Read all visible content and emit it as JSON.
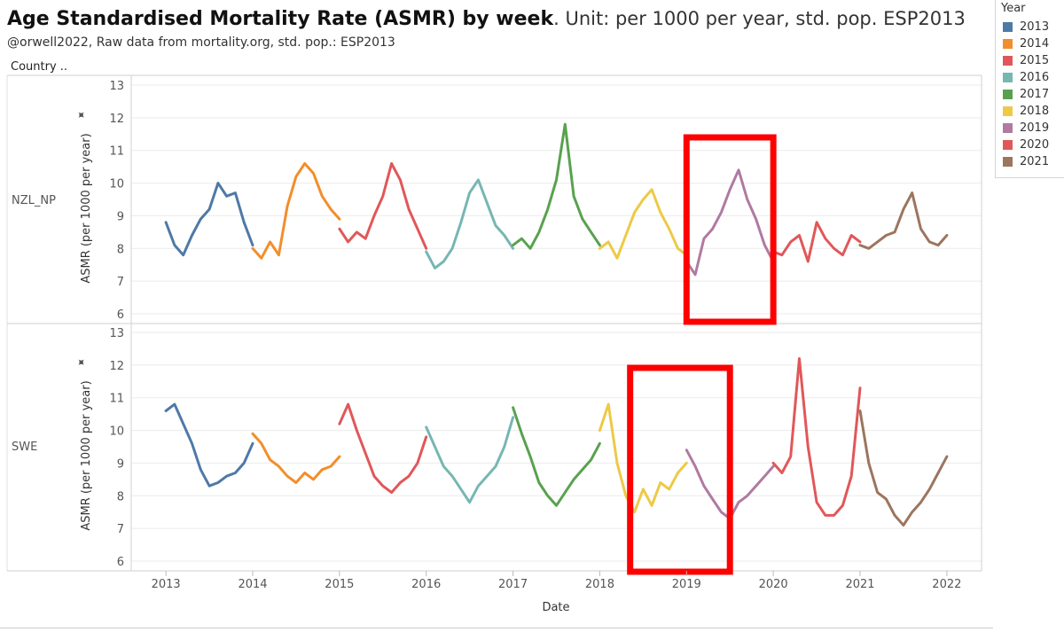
{
  "header": {
    "title_bold": "Age Standardised Mortality Rate (ASMR) by week",
    "title_rest": ". Unit: per 1000 per year, std. pop. ESP2013",
    "subtitle": "@orwell2022,  Raw data from mortality.org, std. pop.: ESP2013",
    "row_header": "Country .."
  },
  "legend": {
    "title": "Year",
    "items": [
      {
        "label": "2013",
        "color": "#4e79a7"
      },
      {
        "label": "2014",
        "color": "#f28e2b"
      },
      {
        "label": "2015",
        "color": "#e15759"
      },
      {
        "label": "2016",
        "color": "#76b7b2"
      },
      {
        "label": "2017",
        "color": "#59a14f"
      },
      {
        "label": "2018",
        "color": "#edc948"
      },
      {
        "label": "2019",
        "color": "#b07aa1"
      },
      {
        "label": "2020",
        "color": "#e15759"
      },
      {
        "label": "2021",
        "color": "#9c755f"
      }
    ]
  },
  "chart_data": {
    "type": "line",
    "title": "Age Standardised Mortality Rate (ASMR) by week",
    "xlabel": "Date",
    "ylabel": "ASMR (per 1000 per year)",
    "ylim": [
      6,
      13
    ],
    "yticks": [
      6,
      7,
      8,
      9,
      10,
      11,
      12,
      13
    ],
    "xlim": [
      2012.6,
      2022.4
    ],
    "xticks": [
      "2013",
      "2014",
      "2015",
      "2016",
      "2017",
      "2018",
      "2019",
      "2020",
      "2021",
      "2022"
    ],
    "highlight_color": "#ff0000",
    "panels": [
      {
        "country": "NZL_NP",
        "highlight": {
          "x_start": 2019.0,
          "x_end": 2020.0
        },
        "series": [
          {
            "name": "2013",
            "x": [
              2013.0,
              2013.1,
              2013.2,
              2013.3,
              2013.4,
              2013.5,
              2013.6,
              2013.7,
              2013.8,
              2013.9,
              2014.0
            ],
            "y": [
              8.8,
              8.1,
              7.8,
              8.4,
              8.9,
              9.2,
              10.0,
              9.6,
              9.7,
              8.8,
              8.1
            ]
          },
          {
            "name": "2014",
            "x": [
              2014.0,
              2014.1,
              2014.2,
              2014.3,
              2014.4,
              2014.5,
              2014.6,
              2014.7,
              2014.8,
              2014.9,
              2015.0
            ],
            "y": [
              8.0,
              7.7,
              8.2,
              7.8,
              9.3,
              10.2,
              10.6,
              10.3,
              9.6,
              9.2,
              8.9
            ]
          },
          {
            "name": "2015",
            "x": [
              2015.0,
              2015.1,
              2015.2,
              2015.3,
              2015.4,
              2015.5,
              2015.6,
              2015.7,
              2015.8,
              2015.9,
              2016.0
            ],
            "y": [
              8.6,
              8.2,
              8.5,
              8.3,
              9.0,
              9.6,
              10.6,
              10.1,
              9.2,
              8.6,
              8.0
            ]
          },
          {
            "name": "2016",
            "x": [
              2016.0,
              2016.1,
              2016.2,
              2016.3,
              2016.4,
              2016.5,
              2016.6,
              2016.7,
              2016.8,
              2016.9,
              2017.0
            ],
            "y": [
              7.9,
              7.4,
              7.6,
              8.0,
              8.8,
              9.7,
              10.1,
              9.4,
              8.7,
              8.4,
              8.0
            ]
          },
          {
            "name": "2017",
            "x": [
              2017.0,
              2017.1,
              2017.2,
              2017.3,
              2017.4,
              2017.5,
              2017.6,
              2017.7,
              2017.8,
              2017.9,
              2018.0
            ],
            "y": [
              8.1,
              8.3,
              8.0,
              8.5,
              9.2,
              10.1,
              11.8,
              9.6,
              8.9,
              8.5,
              8.1
            ]
          },
          {
            "name": "2018",
            "x": [
              2018.0,
              2018.1,
              2018.2,
              2018.3,
              2018.4,
              2018.5,
              2018.6,
              2018.7,
              2018.8,
              2018.9,
              2019.0
            ],
            "y": [
              8.0,
              8.2,
              7.7,
              8.4,
              9.1,
              9.5,
              9.8,
              9.1,
              8.6,
              8.0,
              7.8
            ]
          },
          {
            "name": "2019",
            "x": [
              2019.0,
              2019.1,
              2019.2,
              2019.3,
              2019.4,
              2019.5,
              2019.6,
              2019.7,
              2019.8,
              2019.9,
              2020.0
            ],
            "y": [
              7.6,
              7.2,
              8.3,
              8.6,
              9.1,
              9.8,
              10.4,
              9.5,
              8.9,
              8.1,
              7.6
            ]
          },
          {
            "name": "2020",
            "x": [
              2020.0,
              2020.1,
              2020.2,
              2020.3,
              2020.4,
              2020.5,
              2020.6,
              2020.7,
              2020.8,
              2020.9,
              2021.0
            ],
            "y": [
              7.9,
              7.8,
              8.2,
              8.4,
              7.6,
              8.8,
              8.3,
              8.0,
              7.8,
              8.4,
              8.2
            ]
          },
          {
            "name": "2021",
            "x": [
              2021.0,
              2021.1,
              2021.2,
              2021.3,
              2021.4,
              2021.5,
              2021.6,
              2021.7,
              2021.8,
              2021.9,
              2022.0
            ],
            "y": [
              8.1,
              8.0,
              8.2,
              8.4,
              8.5,
              9.2,
              9.7,
              8.6,
              8.2,
              8.1,
              8.4
            ]
          }
        ]
      },
      {
        "country": "SWE",
        "highlight": {
          "x_start": 2018.35,
          "x_end": 2019.5
        },
        "series": [
          {
            "name": "2013",
            "x": [
              2013.0,
              2013.1,
              2013.2,
              2013.3,
              2013.4,
              2013.5,
              2013.6,
              2013.7,
              2013.8,
              2013.9,
              2014.0
            ],
            "y": [
              10.6,
              10.8,
              10.2,
              9.6,
              8.8,
              8.3,
              8.4,
              8.6,
              8.7,
              9.0,
              9.6
            ]
          },
          {
            "name": "2014",
            "x": [
              2014.0,
              2014.1,
              2014.2,
              2014.3,
              2014.4,
              2014.5,
              2014.6,
              2014.7,
              2014.8,
              2014.9,
              2015.0
            ],
            "y": [
              9.9,
              9.6,
              9.1,
              8.9,
              8.6,
              8.4,
              8.7,
              8.5,
              8.8,
              8.9,
              9.2
            ]
          },
          {
            "name": "2015",
            "x": [
              2015.0,
              2015.1,
              2015.2,
              2015.3,
              2015.4,
              2015.5,
              2015.6,
              2015.7,
              2015.8,
              2015.9,
              2016.0
            ],
            "y": [
              10.2,
              10.8,
              10.0,
              9.3,
              8.6,
              8.3,
              8.1,
              8.4,
              8.6,
              9.0,
              9.8
            ]
          },
          {
            "name": "2016",
            "x": [
              2016.0,
              2016.1,
              2016.2,
              2016.3,
              2016.4,
              2016.5,
              2016.6,
              2016.7,
              2016.8,
              2016.9,
              2017.0
            ],
            "y": [
              10.1,
              9.5,
              8.9,
              8.6,
              8.2,
              7.8,
              8.3,
              8.6,
              8.9,
              9.5,
              10.4
            ]
          },
          {
            "name": "2017",
            "x": [
              2017.0,
              2017.1,
              2017.2,
              2017.3,
              2017.4,
              2017.5,
              2017.6,
              2017.7,
              2017.8,
              2017.9,
              2018.0
            ],
            "y": [
              10.7,
              9.9,
              9.2,
              8.4,
              8.0,
              7.7,
              8.1,
              8.5,
              8.8,
              9.1,
              9.6
            ]
          },
          {
            "name": "2018",
            "x": [
              2018.0,
              2018.1,
              2018.2,
              2018.3,
              2018.4,
              2018.5,
              2018.6,
              2018.7,
              2018.8,
              2018.9,
              2019.0
            ],
            "y": [
              10.0,
              10.8,
              9.0,
              8.0,
              7.5,
              8.2,
              7.7,
              8.4,
              8.2,
              8.7,
              9.0
            ]
          },
          {
            "name": "2019",
            "x": [
              2019.0,
              2019.1,
              2019.2,
              2019.3,
              2019.4,
              2019.5,
              2019.6,
              2019.7,
              2019.8,
              2019.9,
              2020.0
            ],
            "y": [
              9.4,
              8.9,
              8.3,
              7.9,
              7.5,
              7.3,
              7.8,
              8.0,
              8.3,
              8.6,
              8.9
            ]
          },
          {
            "name": "2020",
            "x": [
              2020.0,
              2020.1,
              2020.2,
              2020.3,
              2020.4,
              2020.5,
              2020.6,
              2020.7,
              2020.8,
              2020.9,
              2021.0
            ],
            "y": [
              9.0,
              8.7,
              9.2,
              12.2,
              9.5,
              7.8,
              7.4,
              7.4,
              7.7,
              8.6,
              11.3
            ]
          },
          {
            "name": "2021",
            "x": [
              2021.0,
              2021.1,
              2021.2,
              2021.3,
              2021.4,
              2021.5,
              2021.6,
              2021.7,
              2021.8,
              2021.9,
              2022.0
            ],
            "y": [
              10.6,
              9.0,
              8.1,
              7.9,
              7.4,
              7.1,
              7.5,
              7.8,
              8.2,
              8.7,
              9.2
            ]
          }
        ]
      }
    ]
  }
}
